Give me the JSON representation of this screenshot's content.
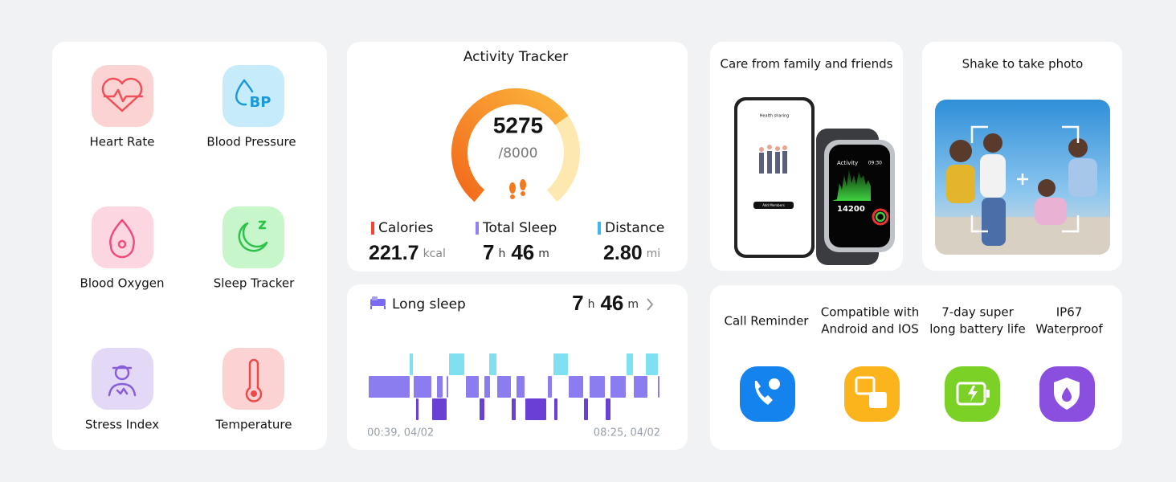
{
  "health": {
    "items": [
      "Heart Rate",
      "Blood Pressure",
      "Blood Oxygen",
      "Sleep Tracker",
      "Stress Index",
      "Temperature"
    ],
    "bp_badge": "BP"
  },
  "activity": {
    "title": "Activity Tracker",
    "steps": "5275",
    "goal": "/8000",
    "stats": [
      {
        "label": "Calories",
        "parts": [
          "221.7",
          "kcal"
        ]
      },
      {
        "label": "Total Sleep",
        "parts": [
          "7",
          "h",
          "46",
          "m"
        ]
      },
      {
        "label": "Distance",
        "parts": [
          "2.80",
          "mi"
        ]
      }
    ]
  },
  "sleep": {
    "title": "Long sleep",
    "duration": [
      "7",
      "h",
      "46",
      "m"
    ],
    "start": "00:39, 04/02",
    "end": "08:25, 04/02"
  },
  "family": {
    "title": "Care from family and friends",
    "phone_header": "Health sharing",
    "phone_button": "Add Members",
    "watch_title": "Activity",
    "watch_time": "09:30",
    "watch_steps": "14200"
  },
  "photo": {
    "title": "Shake to take photo"
  },
  "features": [
    [
      "Call Reminder"
    ],
    [
      "Compatible with",
      "Android and IOS"
    ],
    [
      "7-day super",
      "long battery life"
    ],
    [
      "IP67",
      "Waterproof"
    ]
  ]
}
